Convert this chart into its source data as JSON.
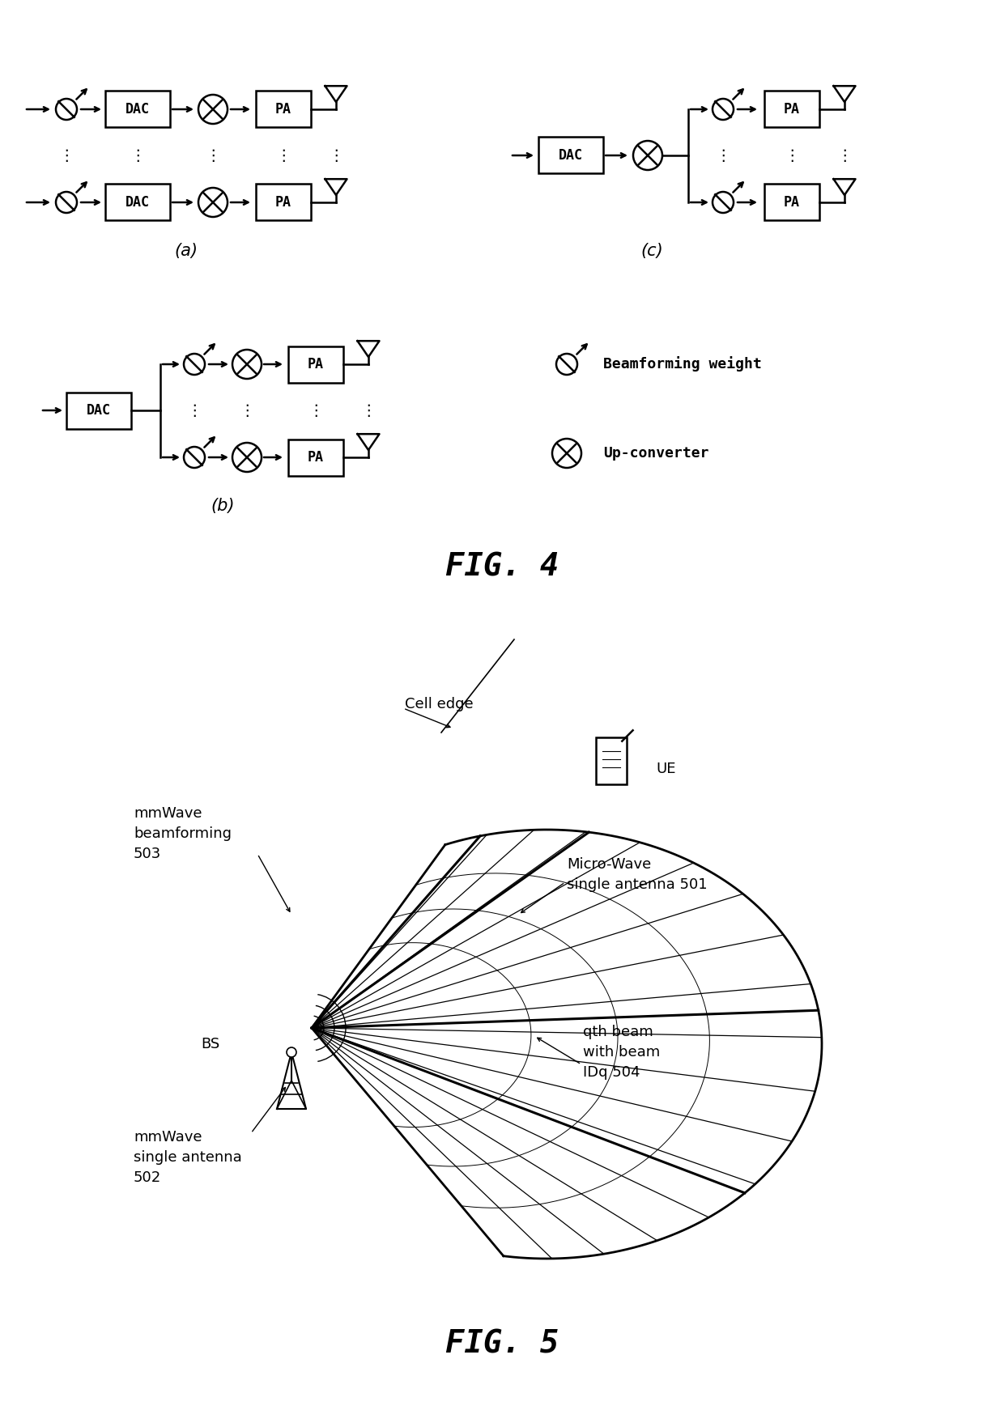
{
  "fig4_title": "FIG. 4",
  "fig5_title": "FIG. 5",
  "background_color": "#ffffff",
  "label_a": "(a)",
  "label_b": "(b)",
  "label_c": "(c)",
  "legend_bw": "Beamforming weight",
  "legend_uc": "Up-converter",
  "fig5_labels": {
    "cell_edge": "Cell edge",
    "ue": "UE",
    "mmwave_bf": "mmWave\nbeamforming\n503",
    "micro_wave": "Micro-Wave\nsingle antenna 501",
    "bs": "BS",
    "mmwave_sa": "mmWave\nsingle antenna\n502",
    "qth_beam": "qth beam\nwith beam\nIDq 504"
  },
  "lw": 1.8,
  "r_circ": 0.028,
  "r_bw": 0.02
}
